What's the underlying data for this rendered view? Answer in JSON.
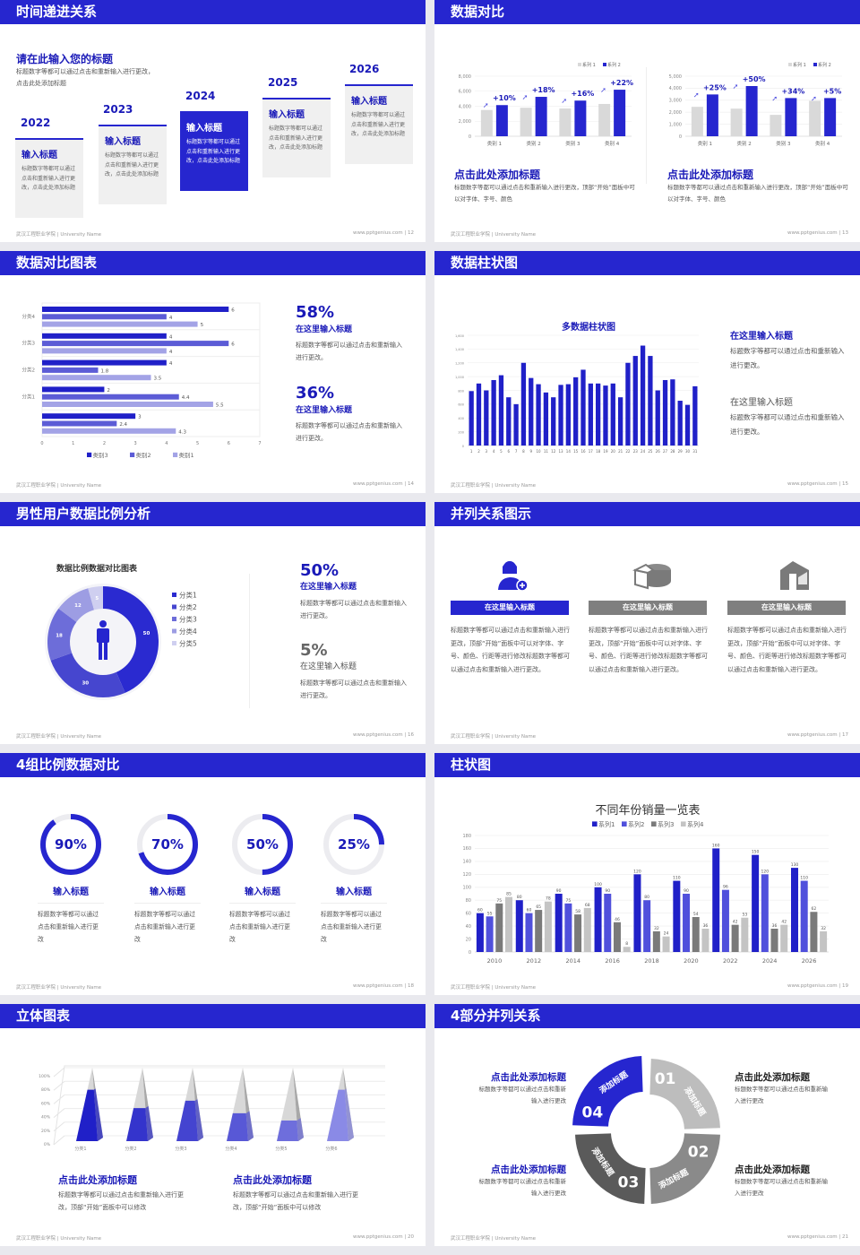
{
  "footer": {
    "school": "武汉工程职业学院 | University Name",
    "url": "www.pptgenius.com | "
  },
  "colors": {
    "primary": "#2626cf",
    "text_blue": "#1a1ab8",
    "gray_bar": "#d9d9d9"
  },
  "s1": {
    "title": "时间递进关系",
    "page": "12",
    "heading": "请在此输入您的标题",
    "desc": "标题数字等都可以通过点击和重新输入进行更改，点击此处添加标题",
    "cards": [
      {
        "year": "2022",
        "title": "输入标题",
        "desc": "标题数字等都可以通过点击和重新输入进行更改，点击此处添加标题"
      },
      {
        "year": "2023",
        "title": "输入标题",
        "desc": "标题数字等都可以通过点击和重新输入进行更改，点击此处添加标题"
      },
      {
        "year": "2024",
        "title": "输入标题",
        "desc": "标题数字等都可以通过点击和重新输入进行更改，点击此处添加标题"
      },
      {
        "year": "2025",
        "title": "输入标题",
        "desc": "标题数字等都可以通过点击和重新输入进行更改，点击此处添加标题"
      },
      {
        "year": "2026",
        "title": "输入标题",
        "desc": "标题数字等都可以通过点击和重新输入进行更改，点击此处添加标题"
      }
    ]
  },
  "s2": {
    "title": "数据对比",
    "page": "13",
    "blocks": [
      {
        "heading": "点击此处添加标题",
        "desc": "标题数字等都可以通过点击和重新输入进行更改，顶部“开始”面板中可以对字体、字号、颜色"
      },
      {
        "heading": "点击此处添加标题",
        "desc": "标题数字等都可以通过点击和重新输入进行更改，顶部“开始”面板中可以对字体、字号、颜色"
      }
    ]
  },
  "s3": {
    "title": "数据对比图表",
    "page": "14",
    "items": [
      {
        "value": "58%",
        "heading": "在这里输入标题",
        "desc": "标题数字等都可以通过点击和重新输入进行更改。"
      },
      {
        "value": "36%",
        "heading": "在这里输入标题",
        "desc": "标题数字等都可以通过点击和重新输入进行更改。"
      }
    ]
  },
  "s4": {
    "title": "数据柱状图",
    "page": "15",
    "items": [
      {
        "heading": "在这里输入标题",
        "desc": "标题数字等都可以通过点击和重新输入进行更改。"
      },
      {
        "heading": "在这里输入标题",
        "desc": "标题数字等都可以通过点击和重新输入进行更改。"
      }
    ]
  },
  "s5": {
    "title": "男性用户数据比例分析",
    "page": "16",
    "items": [
      {
        "value": "50%",
        "heading": "在这里输入标题",
        "desc": "标题数字等都可以通过点击和重新输入进行更改。"
      },
      {
        "value": "5%",
        "heading": "在这里输入标题",
        "desc": "标题数字等都可以通过点击和重新输入进行更改。"
      }
    ]
  },
  "s6": {
    "title": "并列关系图示",
    "page": "17",
    "items": [
      {
        "icon": "user-add-icon",
        "label": "在这里输入标题",
        "desc": "标题数字等都可以通过点击和重新输入进行更改，顶部“开始”面板中可以对字体、字号、颜色、行距等进行修改标题数字等都可以通过点击和重新输入进行更改。"
      },
      {
        "icon": "pie-chart-icon",
        "label": "在这里输入标题",
        "desc": "标题数字等都可以通过点击和重新输入进行更改，顶部“开始”面板中可以对字体、字号、颜色、行距等进行修改标题数字等都可以通过点击和重新输入进行更改。"
      },
      {
        "icon": "building-icon",
        "label": "在这里输入标题",
        "desc": "标题数字等都可以通过点击和重新输入进行更改，顶部“开始”面板中可以对字体、字号、颜色、行距等进行修改标题数字等都可以通过点击和重新输入进行更改。"
      }
    ]
  },
  "s7": {
    "title": "4组比例数据对比",
    "page": "18",
    "items": [
      {
        "value": 90,
        "label": "90%",
        "heading": "输入标题",
        "desc": "标题数字等都可以通过点击和重新输入进行更改"
      },
      {
        "value": 70,
        "label": "70%",
        "heading": "输入标题",
        "desc": "标题数字等都可以通过点击和重新输入进行更改"
      },
      {
        "value": 50,
        "label": "50%",
        "heading": "输入标题",
        "desc": "标题数字等都可以通过点击和重新输入进行更改"
      },
      {
        "value": 25,
        "label": "25%",
        "heading": "输入标题",
        "desc": "标题数字等都可以通过点击和重新输入进行更改"
      }
    ]
  },
  "s8": {
    "title": "柱状图",
    "page": "19"
  },
  "s9": {
    "title": "立体图表",
    "page": "20",
    "blocks": [
      {
        "heading": "点击此处添加标题",
        "desc": "标题数字等都可以通过点击和重新输入进行更改，顶部“开始”面板中可以修改"
      },
      {
        "heading": "点击此处添加标题",
        "desc": "标题数字等都可以通过点击和重新输入进行更改，顶部“开始”面板中可以修改"
      }
    ]
  },
  "s10": {
    "title": "4部分并列关系",
    "page": "21",
    "segments": [
      {
        "num": "01",
        "label": "添加标题",
        "color": "#bdbdbd"
      },
      {
        "num": "02",
        "label": "添加标题",
        "color": "#8a8a8a"
      },
      {
        "num": "03",
        "label": "添加标题",
        "color": "#5a5a5a"
      },
      {
        "num": "04",
        "label": "添加标题",
        "color": "#2626cf"
      }
    ],
    "items": [
      {
        "heading": "点击此处添加标题",
        "desc": "标题数字等都可以通过点击和重新输入进行更改"
      },
      {
        "heading": "点击此处添加标题",
        "desc": "标题数字等都可以通过点击和重新输入进行更改"
      },
      {
        "heading": "点击此处添加标题",
        "desc": "标题数字等都可以通过点击和重新输入进行更改"
      },
      {
        "heading": "点击此处添加标题",
        "desc": "标题数字等都可以通过点击和重新输入进行更改"
      }
    ]
  },
  "chart_data": [
    {
      "type": "bar",
      "categories": [
        "类别 1",
        "类别 2",
        "类别 3",
        "类别 4"
      ],
      "ylim": [
        0,
        8000
      ],
      "yticks": [
        0,
        2000,
        4000,
        6000,
        8000
      ],
      "ytick_labels": [
        "0",
        "2,000",
        "4,000",
        "6,000",
        "8,000"
      ],
      "series": [
        {
          "name": "系列 1",
          "values": [
            3500,
            3800,
            3700,
            4300
          ],
          "color": "#d9d9d9"
        },
        {
          "name": "系列 2",
          "values": [
            4150,
            5250,
            4750,
            6200
          ],
          "color": "#2626cf"
        }
      ],
      "annotations": [
        "+10%",
        "+18%",
        "+16%",
        "+22%"
      ],
      "legend": "top-right"
    },
    {
      "type": "bar",
      "categories": [
        "类别 1",
        "类别 2",
        "类别 3",
        "类别 4"
      ],
      "ylim": [
        0,
        5000
      ],
      "yticks": [
        0,
        1000,
        2000,
        3000,
        4000,
        5000
      ],
      "ytick_labels": [
        "0",
        "1,000",
        "2,000",
        "3,000",
        "4,000",
        "5,000"
      ],
      "series": [
        {
          "name": "系列 1",
          "values": [
            2450,
            2300,
            1780,
            2950
          ],
          "color": "#d9d9d9"
        },
        {
          "name": "系列 2",
          "values": [
            3480,
            4180,
            3180,
            3180
          ],
          "color": "#2626cf"
        }
      ],
      "annotations": [
        "+25%",
        "+50%",
        "+34%",
        "+5%"
      ],
      "legend": "top-right"
    },
    {
      "type": "bar",
      "orientation": "horizontal",
      "categories": [
        "分类4",
        "分类3",
        "分类2",
        "分类1",
        ""
      ],
      "xlim": [
        0,
        7
      ],
      "xticks": [
        0,
        1,
        2,
        3,
        4,
        5,
        6,
        7
      ],
      "series": [
        {
          "name": "类别3",
          "values": [
            6,
            4,
            4,
            2,
            3
          ],
          "color": "#2020c8"
        },
        {
          "name": "类别2",
          "values": [
            4,
            6,
            1.8,
            4.4,
            2.4
          ],
          "color": "#5c5cd6"
        },
        {
          "name": "类别1",
          "values": [
            5,
            4,
            3.5,
            5.5,
            4.3
          ],
          "color": "#a3a3e6"
        }
      ],
      "legend": "bottom"
    },
    {
      "type": "bar",
      "title": "多数据柱状图",
      "categories": [
        "1",
        "2",
        "3",
        "4",
        "5",
        "6",
        "7",
        "8",
        "9",
        "10",
        "11",
        "12",
        "13",
        "14",
        "15",
        "16",
        "17",
        "18",
        "19",
        "20",
        "21",
        "22",
        "23",
        "24",
        "25",
        "26",
        "27",
        "28",
        "29",
        "30",
        "31"
      ],
      "ylim": [
        0,
        1600
      ],
      "yticks": [
        0,
        200,
        400,
        600,
        800,
        1000,
        1200,
        1400,
        1600
      ],
      "ytick_labels": [
        "0",
        "200",
        "400",
        "600",
        "800",
        "1,000",
        "1,200",
        "1,400",
        "1,600"
      ],
      "series": [
        {
          "values": [
            790,
            900,
            800,
            950,
            1020,
            700,
            600,
            1200,
            980,
            890,
            770,
            700,
            880,
            890,
            990,
            1100,
            900,
            900,
            870,
            900,
            700,
            1200,
            1300,
            1450,
            1300,
            800,
            950,
            960,
            650,
            590,
            860
          ],
          "color": "#2020c8"
        }
      ]
    },
    {
      "type": "pie",
      "variant": "donut",
      "title": "数据比例数据对比图表",
      "categories": [
        "分类1",
        "分类2",
        "分类3",
        "分类4",
        "分类5"
      ],
      "values": [
        50,
        30,
        18,
        12,
        5
      ],
      "colors": [
        "#2a2ad0",
        "#4646cf",
        "#6d6dd9",
        "#9d9de3",
        "#cfcff0"
      ],
      "legend": "right"
    },
    {
      "type": "bar",
      "title": "不同年份销量一览表",
      "categories": [
        "2010",
        "2012",
        "2014",
        "2016",
        "2018",
        "2020",
        "2022",
        "2024",
        "2026"
      ],
      "ylim": [
        0,
        180
      ],
      "yticks": [
        0,
        20,
        40,
        60,
        80,
        100,
        120,
        140,
        160,
        180
      ],
      "ytick_labels": [
        "0",
        "20",
        "40",
        "60",
        "80",
        "100",
        "120",
        "140",
        "160",
        "180"
      ],
      "series": [
        {
          "name": "系列1",
          "values": [
            60,
            80,
            90,
            100,
            120,
            110,
            160,
            150,
            130
          ],
          "color": "#2020c8"
        },
        {
          "name": "系列2",
          "values": [
            55,
            60,
            75,
            90,
            80,
            90,
            96,
            120,
            110
          ],
          "color": "#5050dc"
        },
        {
          "name": "系列3",
          "values": [
            75,
            65,
            58,
            46,
            32,
            54,
            42,
            36,
            62
          ],
          "color": "#7a7a7a"
        },
        {
          "name": "系列4",
          "values": [
            85,
            78,
            68,
            8,
            24,
            36,
            53,
            42,
            32
          ],
          "color": "#c4c4c4"
        }
      ],
      "legend": "top"
    },
    {
      "type": "bar",
      "variant": "3d-pyramid",
      "categories": [
        "分类1",
        "分类2",
        "分类3",
        "分类4",
        "分类5",
        "分类6"
      ],
      "values": [
        70,
        45,
        55,
        38,
        28,
        70
      ],
      "ylim": [
        0,
        100
      ],
      "yticks": [
        0,
        20,
        40,
        60,
        80,
        100
      ],
      "ytick_labels": [
        "0%",
        "20%",
        "40%",
        "60%",
        "80%",
        "100%"
      ]
    }
  ]
}
